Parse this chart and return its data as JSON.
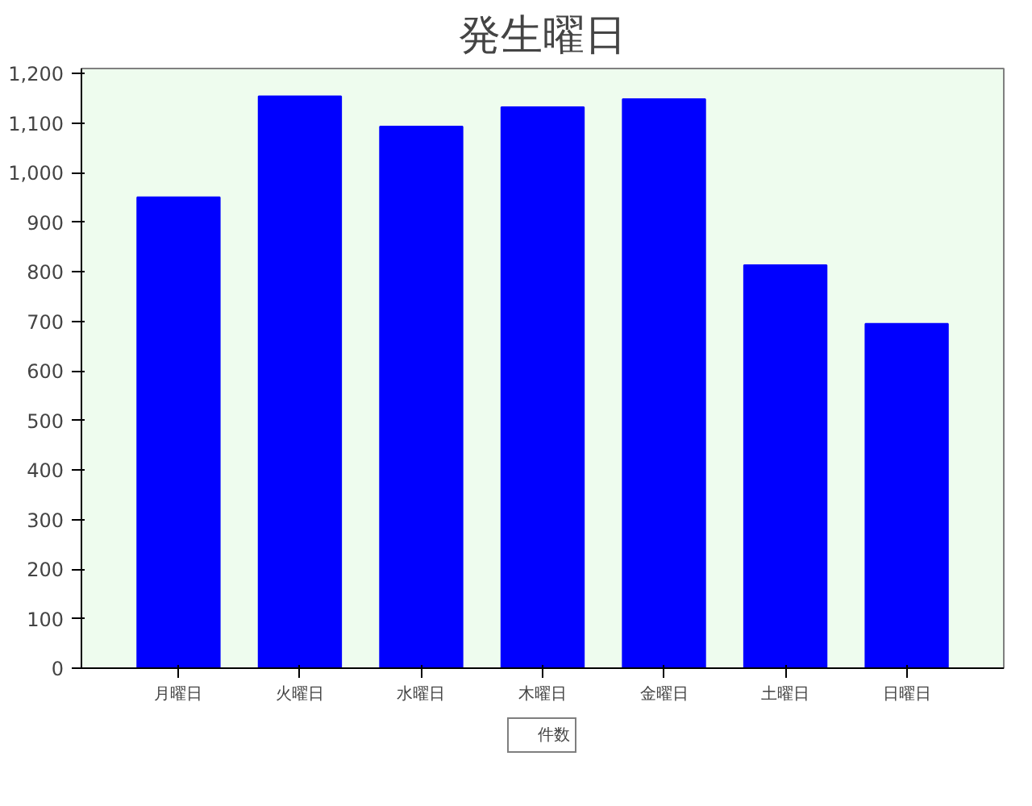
{
  "chart_data": {
    "type": "bar",
    "title": "発生曜日",
    "categories": [
      "月曜日",
      "火曜日",
      "水曜日",
      "木曜日",
      "金曜日",
      "土曜日",
      "日曜日"
    ],
    "series": [
      {
        "name": "件数",
        "color": "#0000ff",
        "values": [
          950,
          1154,
          1093,
          1132,
          1148,
          813,
          695
        ]
      }
    ],
    "ylim": [
      0,
      1210
    ],
    "yticks": [
      0,
      100,
      200,
      300,
      400,
      500,
      600,
      700,
      800,
      900,
      {
        "value": 1000,
        "label": "1,000"
      },
      {
        "value": 1100,
        "label": "1,100"
      },
      {
        "value": 1200,
        "label": "1,200"
      }
    ],
    "grid": false,
    "legend": "bottom"
  }
}
